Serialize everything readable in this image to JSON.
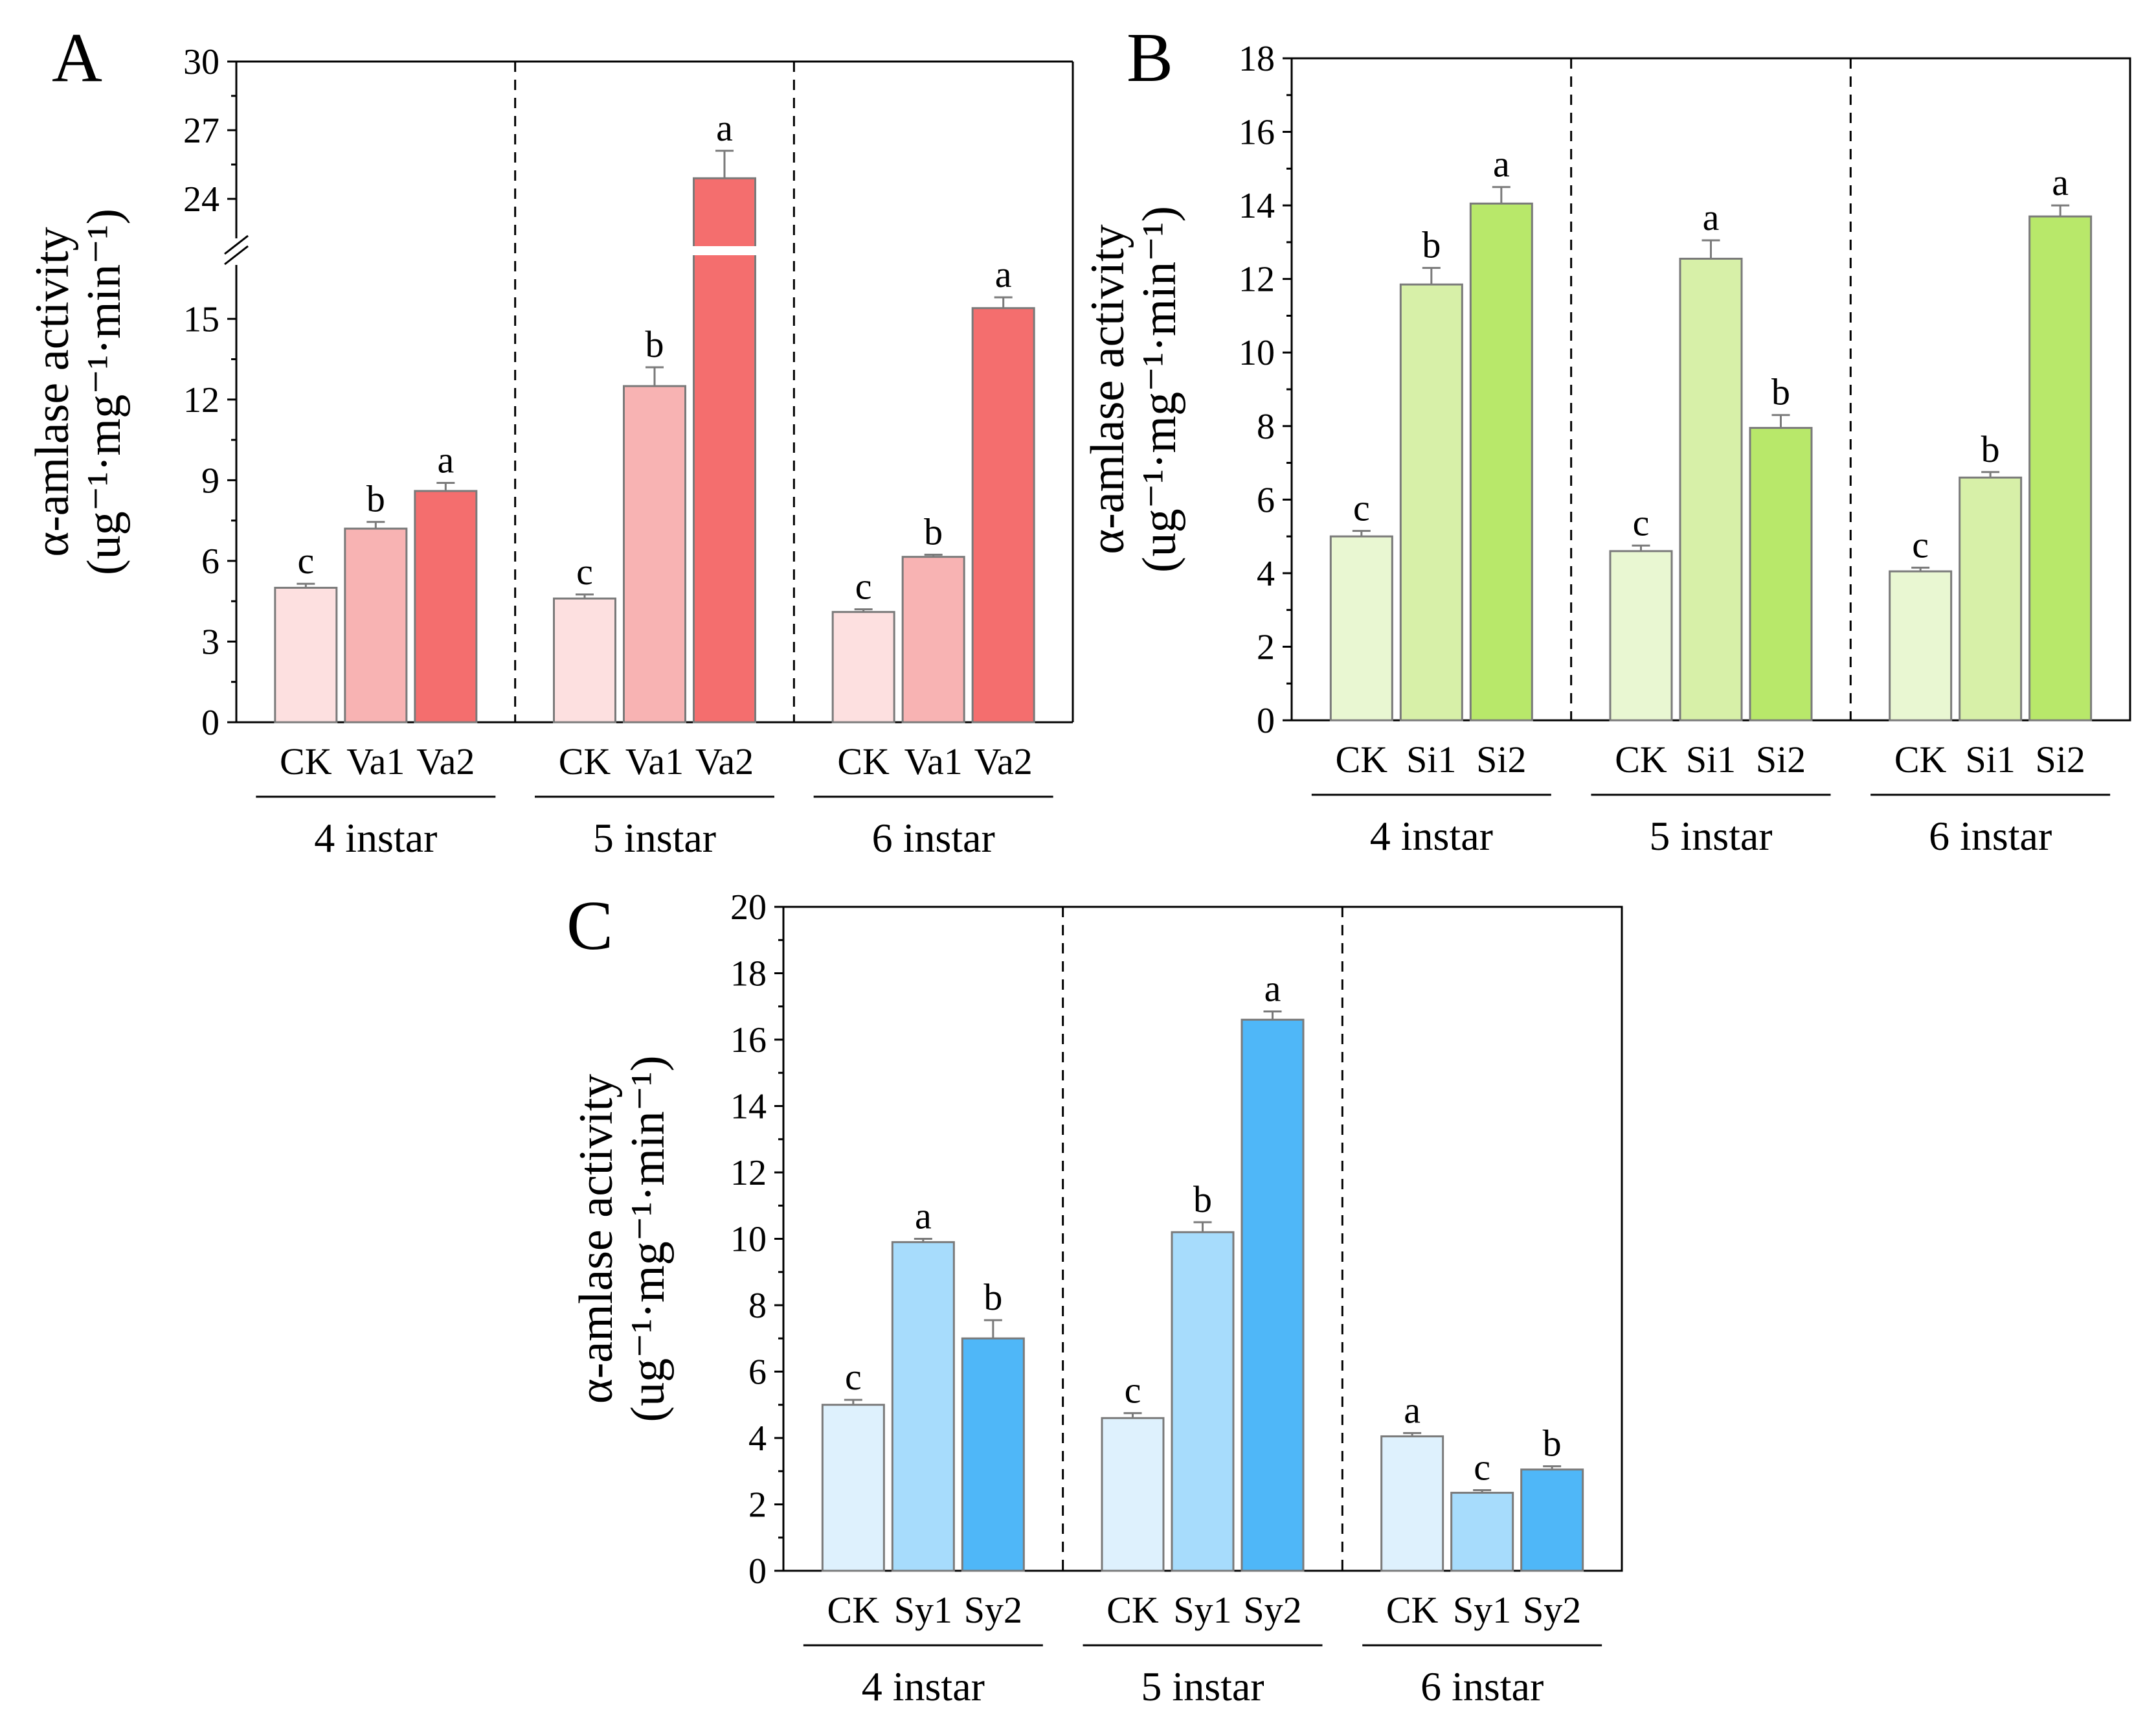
{
  "chart_data": [
    {
      "panel": "A",
      "type": "bar",
      "ylabel": "α-amlase activity",
      "yunit": "(ug⁻¹·mg⁻¹·min⁻¹)",
      "groups": [
        "4 instar",
        "5 instar",
        "6 instar"
      ],
      "categories": [
        "CK",
        "Va1",
        "Va2"
      ],
      "y_lower_ticks": [
        0,
        3,
        6,
        9,
        12,
        15
      ],
      "y_upper_ticks": [
        24,
        27,
        30
      ],
      "ylim_lower": [
        0,
        16.5
      ],
      "ylim_upper": [
        22.5,
        30
      ],
      "axis_break": true,
      "colors": [
        "#fde0e0",
        "#f8b3b3",
        "#f46e6e"
      ],
      "values": [
        [
          5.0,
          7.2,
          8.6
        ],
        [
          4.6,
          12.5,
          24.9
        ],
        [
          4.1,
          6.15,
          15.4
        ]
      ],
      "errors": [
        [
          0.15,
          0.25,
          0.3
        ],
        [
          0.15,
          0.7,
          1.2
        ],
        [
          0.1,
          0.08,
          0.4
        ]
      ],
      "labels": [
        [
          "c",
          "b",
          "a"
        ],
        [
          "c",
          "b",
          "a"
        ],
        [
          "c",
          "b",
          "a"
        ]
      ]
    },
    {
      "panel": "B",
      "type": "bar",
      "ylabel": "α-amlase activity",
      "yunit": "(ug⁻¹·mg⁻¹·min⁻¹)",
      "groups": [
        "4 instar",
        "5 instar",
        "6 instar"
      ],
      "categories": [
        "CK",
        "Si1",
        "Si2"
      ],
      "y_ticks": [
        0,
        2,
        4,
        6,
        8,
        10,
        12,
        14,
        16,
        18
      ],
      "ylim": [
        0,
        18
      ],
      "colors": [
        "#e9f7d2",
        "#d7f0a8",
        "#b8e86a"
      ],
      "values": [
        [
          5.0,
          11.85,
          14.05
        ],
        [
          4.6,
          12.55,
          7.95
        ],
        [
          4.05,
          6.6,
          13.7
        ]
      ],
      "errors": [
        [
          0.15,
          0.45,
          0.45
        ],
        [
          0.15,
          0.5,
          0.35
        ],
        [
          0.1,
          0.15,
          0.3
        ]
      ],
      "labels": [
        [
          "c",
          "b",
          "a"
        ],
        [
          "c",
          "a",
          "b"
        ],
        [
          "c",
          "b",
          "a"
        ]
      ]
    },
    {
      "panel": "C",
      "type": "bar",
      "ylabel": "α-amlase activity",
      "yunit": "(ug⁻¹·mg⁻¹·min⁻¹)",
      "groups": [
        "4 instar",
        "5 instar",
        "6 instar"
      ],
      "categories": [
        "CK",
        "Sy1",
        "Sy2"
      ],
      "y_ticks": [
        0,
        2,
        4,
        6,
        8,
        10,
        12,
        14,
        16,
        18,
        20
      ],
      "ylim": [
        0,
        20
      ],
      "colors": [
        "#def1fd",
        "#a7dcfc",
        "#4fb7f8"
      ],
      "values": [
        [
          5.0,
          9.9,
          7.0
        ],
        [
          4.6,
          10.2,
          16.6
        ],
        [
          4.05,
          2.35,
          3.05
        ]
      ],
      "errors": [
        [
          0.15,
          0.1,
          0.55
        ],
        [
          0.15,
          0.3,
          0.25
        ],
        [
          0.1,
          0.08,
          0.1
        ]
      ],
      "labels": [
        [
          "c",
          "a",
          "b"
        ],
        [
          "c",
          "b",
          "a"
        ],
        [
          "a",
          "c",
          "b"
        ]
      ]
    }
  ]
}
